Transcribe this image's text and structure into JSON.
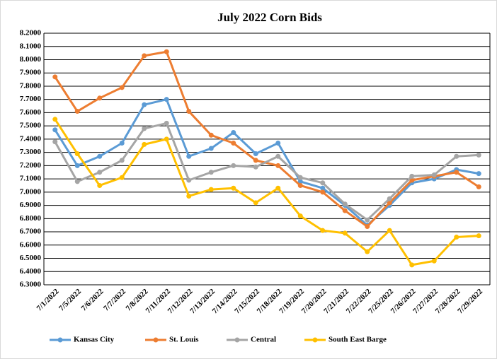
{
  "chart_data": {
    "type": "line",
    "title": "July 2022 Corn Bids",
    "categories": [
      "7/1/2022",
      "7/5/2022",
      "7/6/2022",
      "7/7/2022",
      "7/8/2022",
      "7/11/2022",
      "7/12/2022",
      "7/13/2022",
      "7/14/2022",
      "7/15/2022",
      "7/18/2022",
      "7/19/2022",
      "7/20/2022",
      "7/21/2022",
      "7/22/2022",
      "7/25/2022",
      "7/26/2022",
      "7/27/2022",
      "7/28/2022",
      "7/29/2022"
    ],
    "series": [
      {
        "name": "Kansas City",
        "color": "#5b9bd5",
        "values": [
          7.47,
          7.2,
          7.27,
          7.37,
          7.66,
          7.7,
          7.27,
          7.33,
          7.45,
          7.29,
          7.37,
          7.08,
          7.03,
          6.9,
          6.75,
          6.9,
          7.07,
          7.1,
          7.17,
          7.14
        ]
      },
      {
        "name": "St. Louis",
        "color": "#ed7d31",
        "values": [
          7.87,
          7.61,
          7.71,
          7.79,
          8.03,
          8.06,
          7.61,
          7.43,
          7.37,
          7.24,
          7.2,
          7.05,
          7.0,
          6.86,
          6.74,
          6.92,
          7.09,
          7.12,
          7.15,
          7.04
        ]
      },
      {
        "name": "Central",
        "color": "#a5a5a5",
        "values": [
          7.38,
          7.08,
          7.15,
          7.24,
          7.48,
          7.52,
          7.09,
          7.15,
          7.2,
          7.19,
          7.27,
          7.11,
          7.07,
          6.91,
          6.79,
          6.95,
          7.12,
          7.13,
          7.27,
          7.28
        ]
      },
      {
        "name": "South East Barge",
        "color": "#ffc000",
        "values": [
          7.55,
          7.29,
          7.05,
          7.11,
          7.36,
          7.4,
          6.97,
          7.02,
          7.03,
          6.92,
          7.03,
          6.82,
          6.71,
          6.69,
          6.55,
          6.71,
          6.45,
          6.48,
          6.66,
          6.67
        ]
      }
    ],
    "ylim": [
      6.3,
      8.2
    ],
    "yticks": [
      {
        "value": 6.3,
        "label": "6.3000"
      },
      {
        "value": 6.4,
        "label": "6.4000"
      },
      {
        "value": 6.5,
        "label": "6.5000"
      },
      {
        "value": 6.6,
        "label": "6.6000"
      },
      {
        "value": 6.7,
        "label": "6.7000"
      },
      {
        "value": 6.8,
        "label": "6.8000"
      },
      {
        "value": 6.9,
        "label": "6.9000"
      },
      {
        "value": 7.0,
        "label": "7.0000"
      },
      {
        "value": 7.1,
        "label": "7.1000"
      },
      {
        "value": 7.2,
        "label": "7.2000"
      },
      {
        "value": 7.3,
        "label": "7.3000"
      },
      {
        "value": 7.4,
        "label": "7.4000"
      },
      {
        "value": 7.5,
        "label": "7.5000"
      },
      {
        "value": 7.6,
        "label": "7.6000"
      },
      {
        "value": 7.7,
        "label": "7.7000"
      },
      {
        "value": 7.8,
        "label": "7.8000"
      },
      {
        "value": 7.9,
        "label": "7.9000"
      },
      {
        "value": 8.0,
        "label": "8.0000"
      },
      {
        "value": 8.1,
        "label": "8.1000"
      },
      {
        "value": 8.2,
        "label": "8.2000"
      }
    ],
    "grid": true,
    "legend": "bottom"
  }
}
